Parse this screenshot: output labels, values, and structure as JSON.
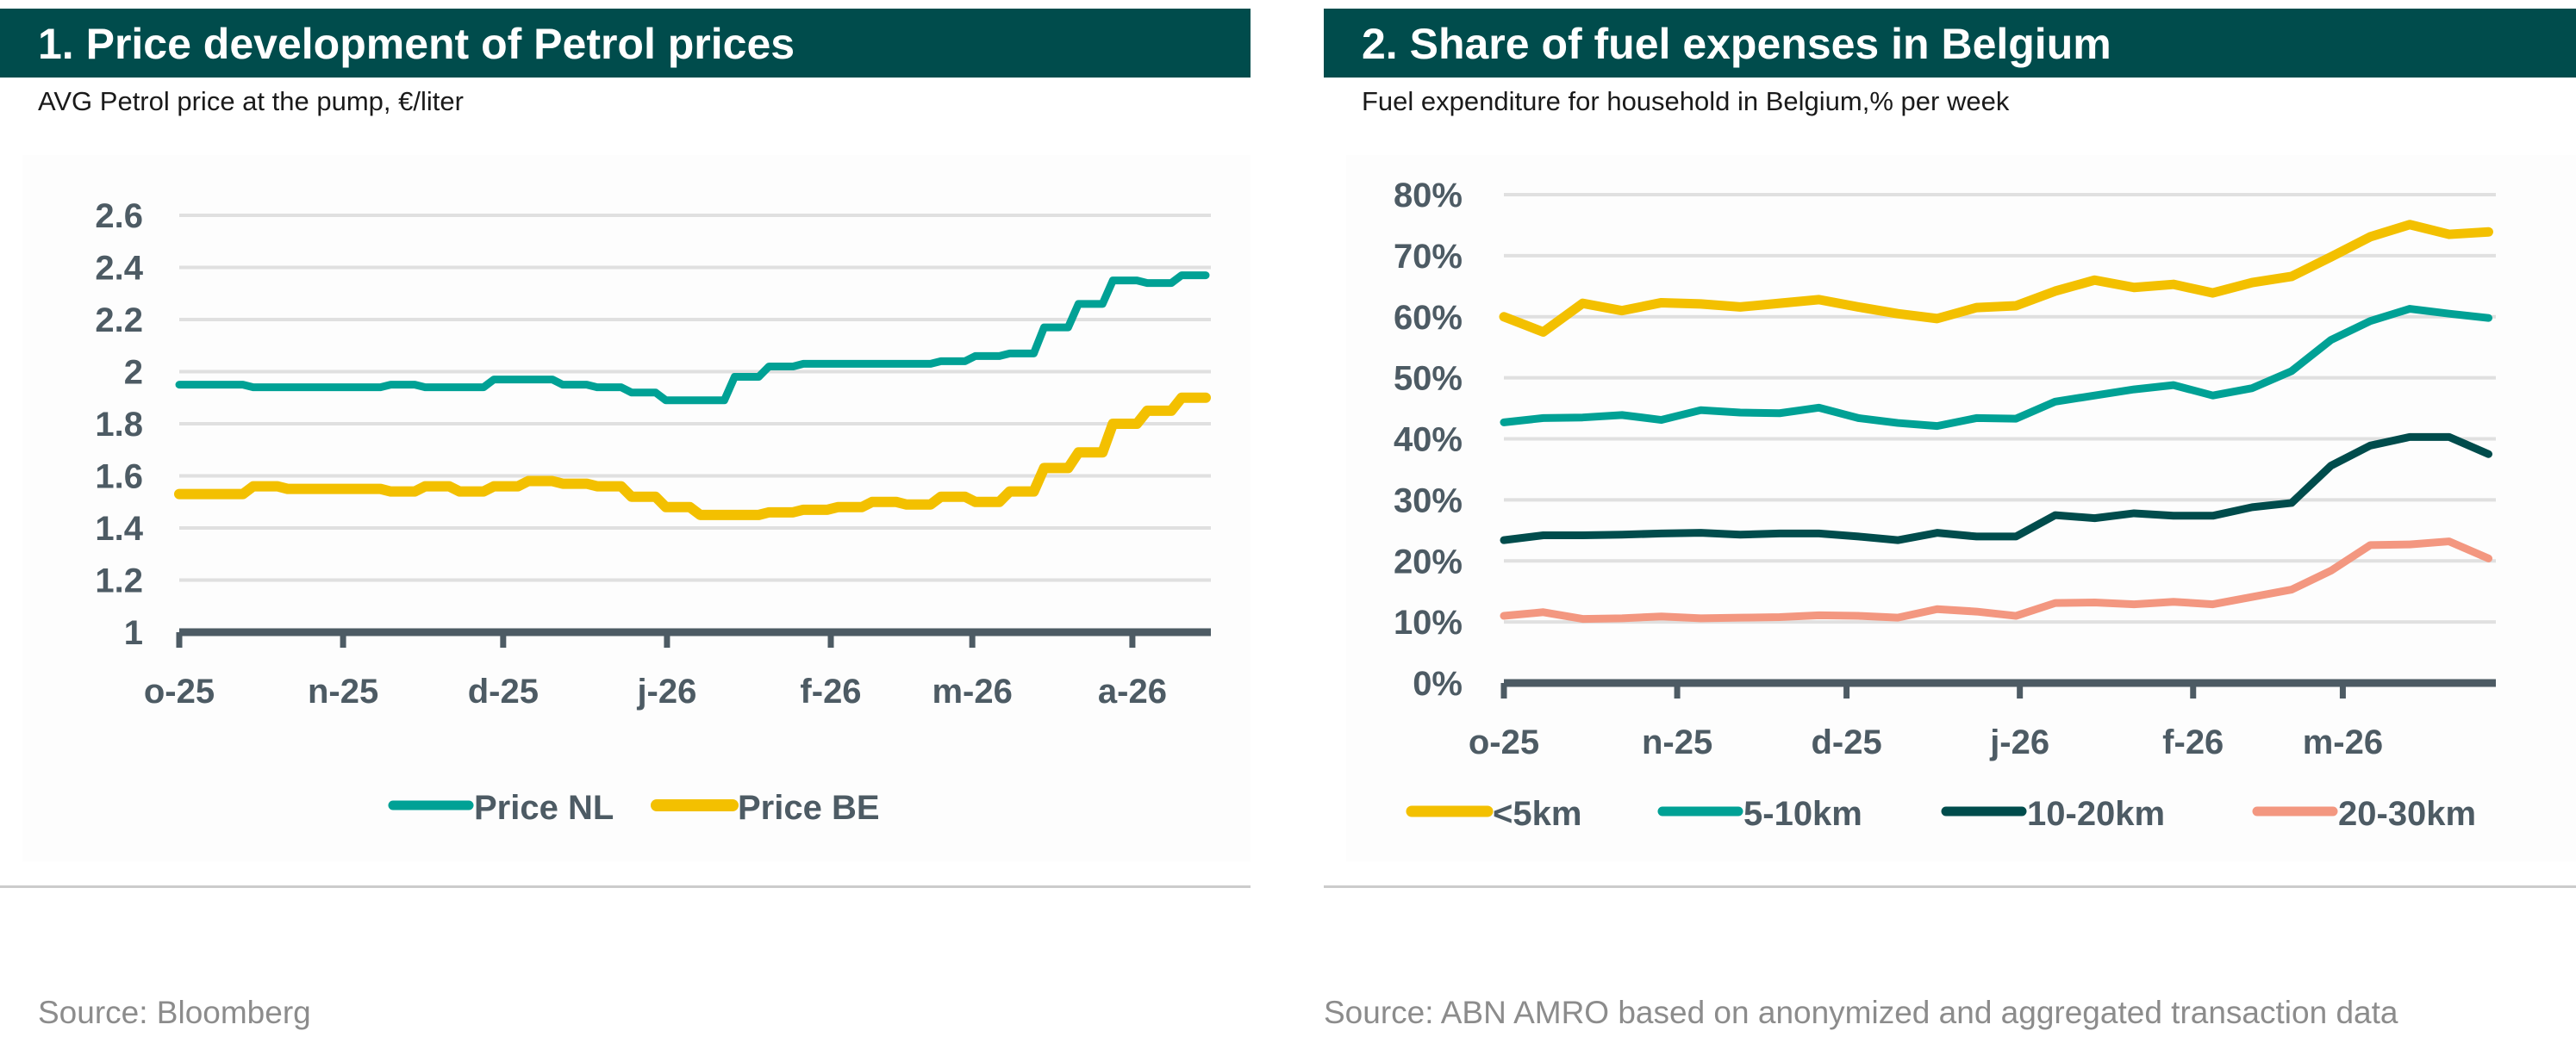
{
  "panels": [
    {
      "title": "1. Price development of Petrol prices",
      "subtitle": "AVG Petrol price at the pump, €/liter",
      "source": "Source: Bloomberg"
    },
    {
      "title": "2. Share of fuel expenses in Belgium",
      "subtitle": "Fuel expenditure for household in Belgium,% per week",
      "source": "Source: ABN AMRO based on anonymized and aggregated transaction data"
    }
  ],
  "colors": {
    "header_bg": "#004c4c",
    "axis": "#4d5b64",
    "grid": "#e0e0e0",
    "teal": "#00a195",
    "yellow": "#f3c000",
    "dark_green": "#004c4c",
    "salmon": "#f39780"
  },
  "chart_data": [
    {
      "type": "line",
      "style": "step",
      "title": "1. Price development of Petrol prices",
      "subtitle": "AVG Petrol price at the pump, €/liter",
      "xlabel": "",
      "ylabel": "",
      "frequency": "weekly",
      "x_ticks": [
        "o-25",
        "n-25",
        "d-25",
        "j-26",
        "f-26",
        "m-26",
        "a-26"
      ],
      "x_tick_weeks": [
        0,
        4.4,
        8.7,
        13.1,
        17.5,
        21.3,
        25.6
      ],
      "ylim": [
        1,
        2.6
      ],
      "y_ticks": [
        1,
        1.2,
        1.4,
        1.6,
        1.8,
        2,
        2.2,
        2.4,
        2.6
      ],
      "y_tick_labels": [
        "1",
        "1.2",
        "1.4",
        "1.6",
        "1.8",
        "2",
        "2.2",
        "2.4",
        "2.6"
      ],
      "grid": true,
      "legend_position": "bottom",
      "series": [
        {
          "name": "Price NL",
          "color": "#00a195",
          "values": [
            1.95,
            1.95,
            1.94,
            1.94,
            1.94,
            1.94,
            1.95,
            1.94,
            1.94,
            1.97,
            1.97,
            1.95,
            1.94,
            1.92,
            1.89,
            1.89,
            1.98,
            2.02,
            2.03,
            2.03,
            2.03,
            2.03,
            2.04,
            2.06,
            2.07,
            2.17,
            2.26,
            2.35,
            2.34,
            2.37
          ]
        },
        {
          "name": "Price BE",
          "color": "#f3c000",
          "values": [
            1.53,
            1.53,
            1.56,
            1.55,
            1.55,
            1.55,
            1.54,
            1.56,
            1.54,
            1.56,
            1.58,
            1.57,
            1.56,
            1.52,
            1.48,
            1.45,
            1.45,
            1.46,
            1.47,
            1.48,
            1.5,
            1.49,
            1.52,
            1.5,
            1.54,
            1.63,
            1.69,
            1.8,
            1.85,
            1.9
          ]
        }
      ]
    },
    {
      "type": "line",
      "title": "2. Share of fuel expenses in Belgium",
      "subtitle": "Fuel expenditure for household in Belgium,% per week",
      "xlabel": "",
      "ylabel": "",
      "frequency": "weekly",
      "x_ticks": [
        "o-25",
        "n-25",
        "d-25",
        "j-26",
        "f-26",
        "m-26"
      ],
      "x_tick_weeks": [
        0,
        4.4,
        8.7,
        13.1,
        17.5,
        21.3
      ],
      "ylim": [
        0,
        80
      ],
      "y_ticks": [
        0,
        10,
        20,
        30,
        40,
        50,
        60,
        70,
        80
      ],
      "y_tick_labels": [
        "0%",
        "10%",
        "20%",
        "30%",
        "40%",
        "50%",
        "60%",
        "70%",
        "80%"
      ],
      "grid": true,
      "legend_position": "bottom",
      "series": [
        {
          "name": "<5km",
          "color": "#f3c000",
          "values": [
            60,
            57.5,
            62.2,
            61,
            62.3,
            62.1,
            61.6,
            62.2,
            62.8,
            61.6,
            60.5,
            59.7,
            61.5,
            61.8,
            64.2,
            66,
            64.8,
            65.3,
            63.9,
            65.6,
            66.6,
            69.8,
            73.1,
            75.1,
            73.5,
            73.9
          ]
        },
        {
          "name": "5-10km",
          "color": "#00a195",
          "values": [
            42.7,
            43.4,
            43.5,
            43.9,
            43.1,
            44.7,
            44.3,
            44.2,
            45.1,
            43.4,
            42.6,
            42.1,
            43.4,
            43.3,
            46.1,
            47.1,
            48.1,
            48.8,
            47.1,
            48.3,
            51.1,
            56.2,
            59.3,
            61.3,
            60.5,
            59.8
          ]
        },
        {
          "name": "10-20km",
          "color": "#004c4c",
          "values": [
            23.4,
            24.2,
            24.2,
            24.3,
            24.5,
            24.6,
            24.3,
            24.5,
            24.5,
            24,
            23.4,
            24.6,
            24,
            24,
            27.5,
            27,
            27.8,
            27.4,
            27.4,
            28.8,
            29.5,
            35.6,
            38.9,
            40.3,
            40.3,
            37.5
          ]
        },
        {
          "name": "20-30km",
          "color": "#f39780",
          "values": [
            11,
            11.6,
            10.5,
            10.6,
            10.9,
            10.6,
            10.7,
            10.8,
            11.1,
            11,
            10.7,
            12.1,
            11.7,
            11,
            13.1,
            13.2,
            12.9,
            13.3,
            12.9,
            14.1,
            15.3,
            18.4,
            22.6,
            22.7,
            23.2,
            20.4
          ]
        }
      ]
    }
  ]
}
